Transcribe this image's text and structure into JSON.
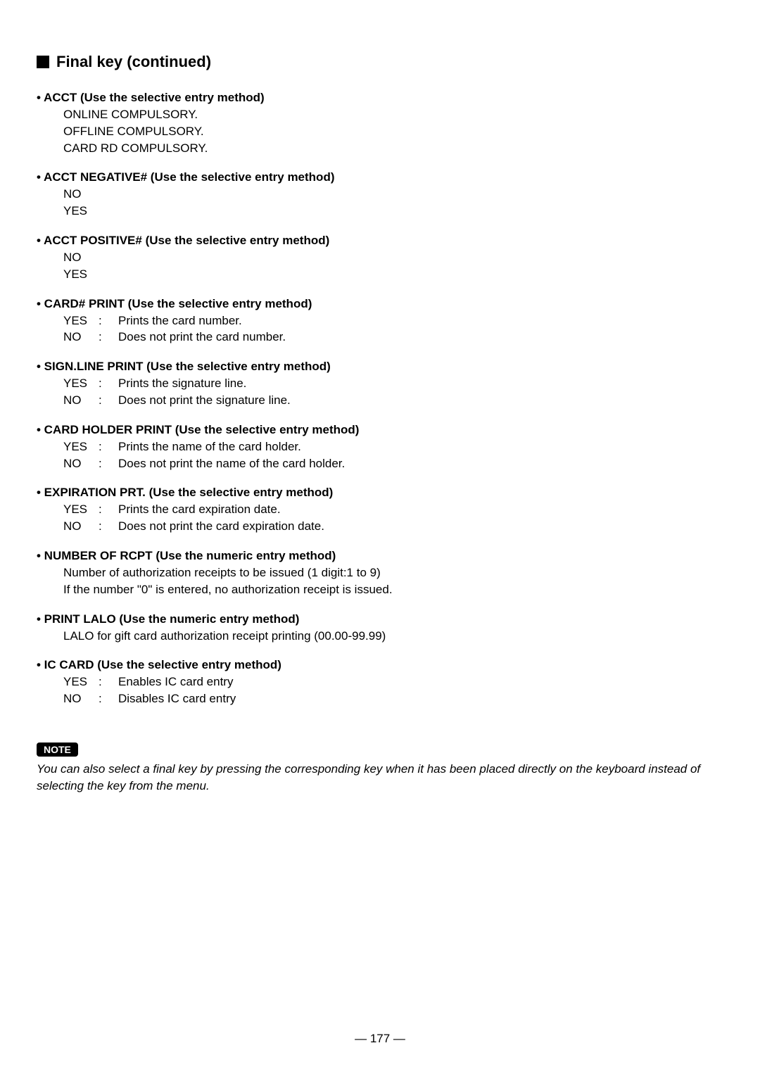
{
  "heading": "Final key (continued)",
  "sections": [
    {
      "title": "• ACCT (Use the selective entry method)",
      "lines": [
        "ONLINE COMPULSORY.",
        "OFFLINE COMPULSORY.",
        "CARD RD COMPULSORY."
      ]
    },
    {
      "title": "• ACCT NEGATIVE# (Use the selective entry method)",
      "lines": [
        "NO",
        "YES"
      ]
    },
    {
      "title": "• ACCT POSITIVE# (Use the selective entry method)",
      "lines": [
        "NO",
        "YES"
      ]
    },
    {
      "title": "• CARD# PRINT (Use the selective entry method)",
      "options": [
        {
          "key": "YES",
          "desc": "Prints the card number."
        },
        {
          "key": "NO",
          "desc": "Does not print the card number."
        }
      ]
    },
    {
      "title": "• SIGN.LINE PRINT (Use the selective entry method)",
      "options": [
        {
          "key": "YES",
          "desc": "Prints the signature line."
        },
        {
          "key": "NO",
          "desc": "Does not print the signature line."
        }
      ]
    },
    {
      "title": "• CARD HOLDER PRINT (Use the selective entry method)",
      "options": [
        {
          "key": "YES",
          "desc": "Prints the name of the card holder."
        },
        {
          "key": "NO",
          "desc": "Does not print the name of the card holder."
        }
      ]
    },
    {
      "title": "• EXPIRATION PRT. (Use the selective entry method)",
      "options": [
        {
          "key": "YES",
          "desc": "Prints the card expiration date."
        },
        {
          "key": "NO",
          "desc": "Does not print the card expiration date."
        }
      ]
    },
    {
      "title": "• NUMBER OF RCPT (Use the numeric entry method)",
      "lines": [
        "Number of authorization receipts to be issued (1 digit:1 to 9)",
        "If the number \"0\" is entered, no authorization receipt is issued."
      ]
    },
    {
      "title": "• PRINT LALO (Use the numeric entry method)",
      "lines": [
        "LALO for gift card authorization receipt printing (00.00-99.99)"
      ]
    },
    {
      "title": "• IC CARD (Use the selective entry method)",
      "options": [
        {
          "key": "YES",
          "desc": "Enables IC card entry"
        },
        {
          "key": "NO",
          "desc": "Disables IC card entry"
        }
      ]
    }
  ],
  "note": {
    "badge": "NOTE",
    "text": "You can also select a final key by pressing the corresponding key when it has been placed directly on the keyboard instead of selecting the key from the menu."
  },
  "page_number": "— 177 —"
}
